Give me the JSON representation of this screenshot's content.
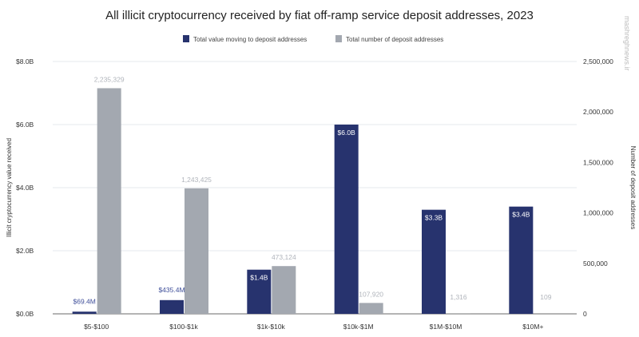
{
  "watermark": "mashreghnews.ir",
  "chart_data": {
    "type": "bar",
    "title": "All illicit cryptocurrency received by fiat off-ramp service deposit addresses, 2023",
    "categories": [
      "$5-$100",
      "$100-$1k",
      "$1k-$10k",
      "$10k-$1M",
      "$1M-$10M",
      "$10M+"
    ],
    "series": [
      {
        "name": "Total value moving to deposit addresses",
        "axis": "left",
        "color": "#27336e",
        "values": [
          0.0694,
          0.4354,
          1.4,
          6.0,
          3.3,
          3.4
        ],
        "labels": [
          "$69.4M",
          "$435.4M",
          "$1.4B",
          "$6.0B",
          "$3.3B",
          "$3.4B"
        ]
      },
      {
        "name": "Total number of deposit addresses",
        "axis": "right",
        "color": "#a3a8b0",
        "values": [
          2235329,
          1243425,
          473124,
          107920,
          1316,
          109
        ],
        "labels": [
          "2,235,329",
          "1,243,425",
          "473,124",
          "107,920",
          "1,316",
          "109"
        ]
      }
    ],
    "ylabel": "Illicit cryptocurrency value received",
    "y2label": "Number of deposit addresses",
    "ylim": [
      0,
      8
    ],
    "y2lim": [
      0,
      2500000
    ],
    "yticks": [
      "$0.0B",
      "$2.0B",
      "$4.0B",
      "$6.0B",
      "$8.0B"
    ],
    "y2ticks": [
      "0",
      "500,000",
      "1,000,000",
      "1,500,000",
      "2,000,000",
      "2,500,000"
    ],
    "grid": true,
    "legend": "top-center"
  }
}
